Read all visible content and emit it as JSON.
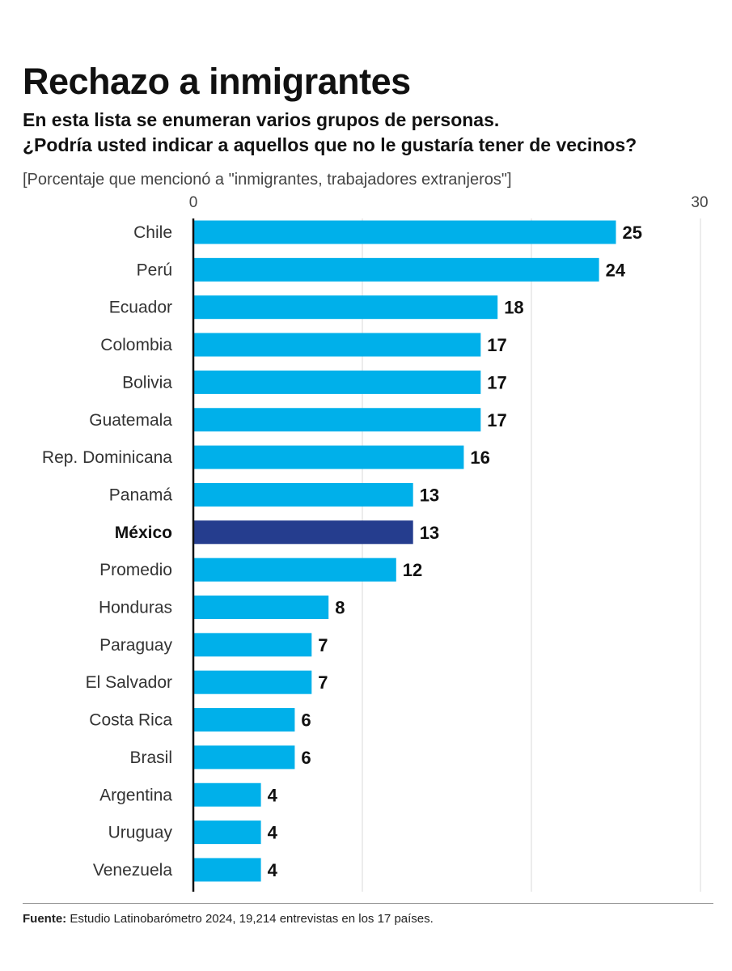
{
  "header": {
    "title": "Rechazo a inmigrantes",
    "subtitle_line1": "En esta lista se enumeran varios grupos de personas.",
    "subtitle_line2": "¿Podría usted indicar a aquellos que no le gustaría tener de vecinos?",
    "note": "[Porcentaje que mencionó a \"inmigrantes, trabajadores extranjeros\"]"
  },
  "footer": {
    "source_label": "Fuente:",
    "source_text": "Estudio Latinobarómetro 2024, 19,214 entrevistas en los 17 países."
  },
  "colors": {
    "bar": "#00b0ea",
    "highlight": "#253d8e",
    "axis": "#111111",
    "grid": "#d9d9d9"
  },
  "chart_data": {
    "type": "bar",
    "orientation": "horizontal",
    "title": "Rechazo a inmigrantes",
    "xlabel": "",
    "ylabel": "",
    "xlim": [
      0,
      30
    ],
    "xticks": [
      0,
      30
    ],
    "gridlines_at": [
      10,
      20,
      30
    ],
    "highlight": "México",
    "categories": [
      "Chile",
      "Perú",
      "Ecuador",
      "Colombia",
      "Bolivia",
      "Guatemala",
      "Rep. Dominicana",
      "Panamá",
      "México",
      "Promedio",
      "Honduras",
      "Paraguay",
      "El Salvador",
      "Costa Rica",
      "Brasil",
      "Argentina",
      "Uruguay",
      "Venezuela"
    ],
    "values": [
      25,
      24,
      18,
      17,
      17,
      17,
      16,
      13,
      13,
      12,
      8,
      7,
      7,
      6,
      6,
      4,
      4,
      4
    ]
  }
}
